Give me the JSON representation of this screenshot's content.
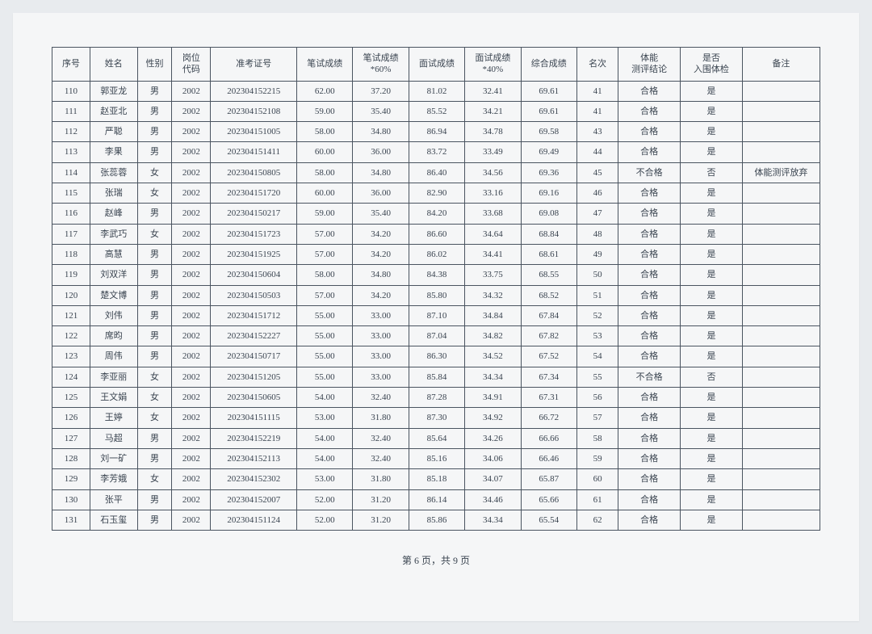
{
  "table": {
    "columns": [
      "序号",
      "姓名",
      "性别",
      "岗位\n代码",
      "准考证号",
      "笔试成绩",
      "笔试成绩\n*60%",
      "面试成绩",
      "面试成绩\n*40%",
      "综合成绩",
      "名次",
      "体能\n测评结论",
      "是否\n入围体检",
      "备注"
    ],
    "rows": [
      [
        "110",
        "郭亚龙",
        "男",
        "2002",
        "202304152215",
        "62.00",
        "37.20",
        "81.02",
        "32.41",
        "69.61",
        "41",
        "合格",
        "是",
        ""
      ],
      [
        "111",
        "赵亚北",
        "男",
        "2002",
        "202304152108",
        "59.00",
        "35.40",
        "85.52",
        "34.21",
        "69.61",
        "41",
        "合格",
        "是",
        ""
      ],
      [
        "112",
        "严聪",
        "男",
        "2002",
        "202304151005",
        "58.00",
        "34.80",
        "86.94",
        "34.78",
        "69.58",
        "43",
        "合格",
        "是",
        ""
      ],
      [
        "113",
        "李果",
        "男",
        "2002",
        "202304151411",
        "60.00",
        "36.00",
        "83.72",
        "33.49",
        "69.49",
        "44",
        "合格",
        "是",
        ""
      ],
      [
        "114",
        "张蕊蓉",
        "女",
        "2002",
        "202304150805",
        "58.00",
        "34.80",
        "86.40",
        "34.56",
        "69.36",
        "45",
        "不合格",
        "否",
        "体能测评放弃"
      ],
      [
        "115",
        "张瑞",
        "女",
        "2002",
        "202304151720",
        "60.00",
        "36.00",
        "82.90",
        "33.16",
        "69.16",
        "46",
        "合格",
        "是",
        ""
      ],
      [
        "116",
        "赵峰",
        "男",
        "2002",
        "202304150217",
        "59.00",
        "35.40",
        "84.20",
        "33.68",
        "69.08",
        "47",
        "合格",
        "是",
        ""
      ],
      [
        "117",
        "李武巧",
        "女",
        "2002",
        "202304151723",
        "57.00",
        "34.20",
        "86.60",
        "34.64",
        "68.84",
        "48",
        "合格",
        "是",
        ""
      ],
      [
        "118",
        "高慧",
        "男",
        "2002",
        "202304151925",
        "57.00",
        "34.20",
        "86.02",
        "34.41",
        "68.61",
        "49",
        "合格",
        "是",
        ""
      ],
      [
        "119",
        "刘双洋",
        "男",
        "2002",
        "202304150604",
        "58.00",
        "34.80",
        "84.38",
        "33.75",
        "68.55",
        "50",
        "合格",
        "是",
        ""
      ],
      [
        "120",
        "楚文博",
        "男",
        "2002",
        "202304150503",
        "57.00",
        "34.20",
        "85.80",
        "34.32",
        "68.52",
        "51",
        "合格",
        "是",
        ""
      ],
      [
        "121",
        "刘伟",
        "男",
        "2002",
        "202304151712",
        "55.00",
        "33.00",
        "87.10",
        "34.84",
        "67.84",
        "52",
        "合格",
        "是",
        ""
      ],
      [
        "122",
        "席昀",
        "男",
        "2002",
        "202304152227",
        "55.00",
        "33.00",
        "87.04",
        "34.82",
        "67.82",
        "53",
        "合格",
        "是",
        ""
      ],
      [
        "123",
        "周伟",
        "男",
        "2002",
        "202304150717",
        "55.00",
        "33.00",
        "86.30",
        "34.52",
        "67.52",
        "54",
        "合格",
        "是",
        ""
      ],
      [
        "124",
        "李亚丽",
        "女",
        "2002",
        "202304151205",
        "55.00",
        "33.00",
        "85.84",
        "34.34",
        "67.34",
        "55",
        "不合格",
        "否",
        ""
      ],
      [
        "125",
        "王文娟",
        "女",
        "2002",
        "202304150605",
        "54.00",
        "32.40",
        "87.28",
        "34.91",
        "67.31",
        "56",
        "合格",
        "是",
        ""
      ],
      [
        "126",
        "王婷",
        "女",
        "2002",
        "202304151115",
        "53.00",
        "31.80",
        "87.30",
        "34.92",
        "66.72",
        "57",
        "合格",
        "是",
        ""
      ],
      [
        "127",
        "马超",
        "男",
        "2002",
        "202304152219",
        "54.00",
        "32.40",
        "85.64",
        "34.26",
        "66.66",
        "58",
        "合格",
        "是",
        ""
      ],
      [
        "128",
        "刘一矿",
        "男",
        "2002",
        "202304152113",
        "54.00",
        "32.40",
        "85.16",
        "34.06",
        "66.46",
        "59",
        "合格",
        "是",
        ""
      ],
      [
        "129",
        "李芳娥",
        "女",
        "2002",
        "202304152302",
        "53.00",
        "31.80",
        "85.18",
        "34.07",
        "65.87",
        "60",
        "合格",
        "是",
        ""
      ],
      [
        "130",
        "张平",
        "男",
        "2002",
        "202304152007",
        "52.00",
        "31.20",
        "86.14",
        "34.46",
        "65.66",
        "61",
        "合格",
        "是",
        ""
      ],
      [
        "131",
        "石玉玺",
        "男",
        "2002",
        "202304151124",
        "52.00",
        "31.20",
        "85.86",
        "34.34",
        "65.54",
        "62",
        "合格",
        "是",
        ""
      ]
    ]
  },
  "pagination": "第 6 页，共 9 页",
  "styling": {
    "border_color": "#4a5460",
    "text_color": "#3a4450",
    "page_bg": "#f5f6f7",
    "body_bg": "#e8ebee",
    "font_family": "SimSun",
    "header_fontsize": 11,
    "cell_fontsize": 11,
    "pagination_fontsize": 12
  }
}
